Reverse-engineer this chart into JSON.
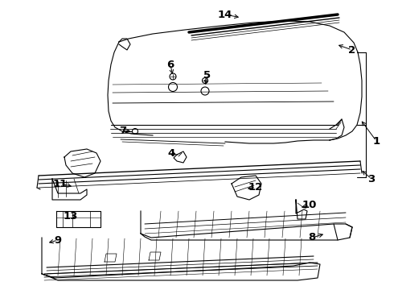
{
  "bg_color": "#ffffff",
  "line_color": "#000000",
  "label_color": "#000000",
  "label_font_size": 9.5,
  "figsize": [
    4.9,
    3.6
  ],
  "dpi": 100,
  "labels": [
    [
      "1",
      468,
      175,
      448,
      148,
      "left"
    ],
    [
      "2",
      438,
      62,
      418,
      55,
      "left"
    ],
    [
      "3",
      462,
      222,
      448,
      210,
      "left"
    ],
    [
      "4",
      213,
      190,
      222,
      193,
      "right"
    ],
    [
      "5",
      258,
      93,
      255,
      108,
      "right"
    ],
    [
      "6",
      212,
      80,
      215,
      95,
      "right"
    ],
    [
      "7",
      153,
      162,
      165,
      163,
      "right"
    ],
    [
      "8",
      388,
      295,
      405,
      290,
      "left"
    ],
    [
      "9",
      72,
      298,
      58,
      302,
      "right"
    ],
    [
      "10",
      385,
      255,
      372,
      258,
      "left"
    ],
    [
      "11",
      75,
      228,
      92,
      232,
      "right"
    ],
    [
      "12",
      318,
      232,
      305,
      235,
      "left"
    ],
    [
      "13",
      88,
      268,
      98,
      272,
      "right"
    ],
    [
      "14",
      280,
      18,
      300,
      22,
      "right"
    ]
  ]
}
